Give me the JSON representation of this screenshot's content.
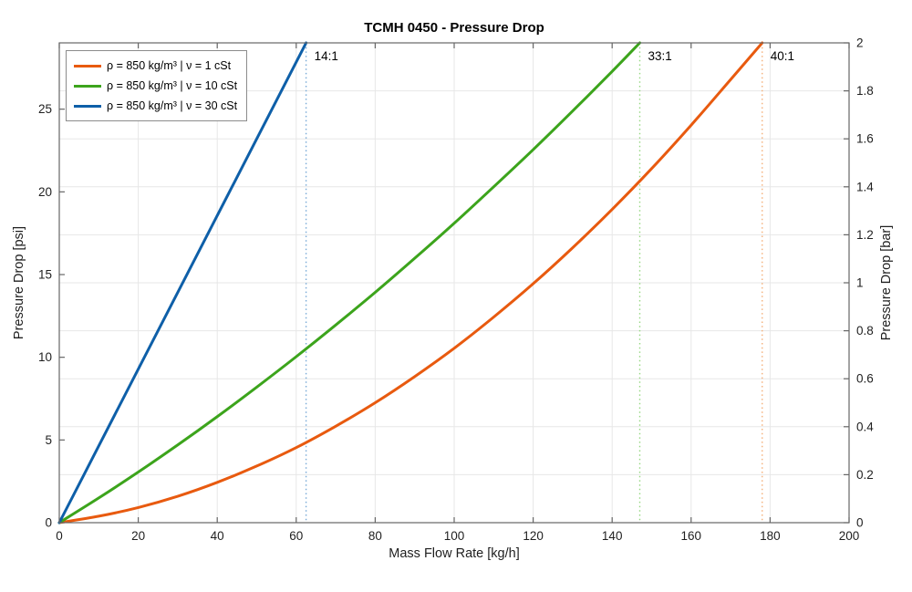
{
  "chart_data": {
    "type": "line",
    "title": "TCMH 0450 - Pressure Drop",
    "xlabel": "Mass Flow Rate [kg/h]",
    "ylabel_left": "Pressure Drop [psi]",
    "ylabel_right": "Pressure Drop [bar]",
    "xlim": [
      0,
      200
    ],
    "ylim_left_psi": [
      0,
      29.0075
    ],
    "ylim_right_bar": [
      0,
      2
    ],
    "x_ticks": [
      0,
      20,
      40,
      60,
      80,
      100,
      120,
      140,
      160,
      180,
      200
    ],
    "y_ticks_left_psi": [
      0,
      5,
      10,
      15,
      20,
      25
    ],
    "y_ticks_right_bar": [
      0,
      0.2,
      0.4,
      0.6,
      0.8,
      1,
      1.2,
      1.4,
      1.6,
      1.8,
      2
    ],
    "grid": true,
    "legend_position": "top-left",
    "colors": {
      "axis": "#666666",
      "grid": "#e7e7e7",
      "text": "#1f1f1f",
      "annotation_text": "#000000"
    },
    "series": [
      {
        "name": "ρ = 850 kg/m³ | ν = 1 cSt",
        "color": "#e85a0f",
        "points_x_kgh_y_bar": [
          [
            0,
            0
          ],
          [
            10,
            0.027
          ],
          [
            20,
            0.063
          ],
          [
            30,
            0.11
          ],
          [
            40,
            0.168
          ],
          [
            50,
            0.236
          ],
          [
            60,
            0.313
          ],
          [
            70,
            0.402
          ],
          [
            80,
            0.5
          ],
          [
            90,
            0.609
          ],
          [
            100,
            0.727
          ],
          [
            110,
            0.857
          ],
          [
            120,
            0.996
          ],
          [
            130,
            1.146
          ],
          [
            140,
            1.306
          ],
          [
            150,
            1.476
          ],
          [
            160,
            1.657
          ],
          [
            170,
            1.847
          ],
          [
            178,
            2.0
          ]
        ]
      },
      {
        "name": "ρ = 850 kg/m³ | ν = 10 cSt",
        "color": "#3ca41c",
        "points_x_kgh_y_bar": [
          [
            0,
            0
          ],
          [
            10,
            0.103
          ],
          [
            20,
            0.211
          ],
          [
            30,
            0.324
          ],
          [
            40,
            0.442
          ],
          [
            50,
            0.565
          ],
          [
            60,
            0.692
          ],
          [
            70,
            0.824
          ],
          [
            80,
            0.96
          ],
          [
            90,
            1.102
          ],
          [
            100,
            1.248
          ],
          [
            110,
            1.4
          ],
          [
            120,
            1.555
          ],
          [
            130,
            1.716
          ],
          [
            140,
            1.881
          ],
          [
            147,
            2.0
          ]
        ]
      },
      {
        "name": "ρ = 850 kg/m³ | ν = 30 cSt",
        "color": "#0e5fa8",
        "points_x_kgh_y_bar": [
          [
            0,
            0
          ],
          [
            10,
            0.32
          ],
          [
            20,
            0.64
          ],
          [
            30,
            0.96
          ],
          [
            40,
            1.28
          ],
          [
            50,
            1.6
          ],
          [
            60,
            1.92
          ],
          [
            62.5,
            2.0
          ]
        ]
      }
    ],
    "annotations": [
      {
        "label": "14:1",
        "x_kgh": 62.5,
        "line_color": "#78aad7"
      },
      {
        "label": "33:1",
        "x_kgh": 147,
        "line_color": "#96d782"
      },
      {
        "label": "40:1",
        "x_kgh": 178,
        "line_color": "#f5af78"
      }
    ]
  }
}
